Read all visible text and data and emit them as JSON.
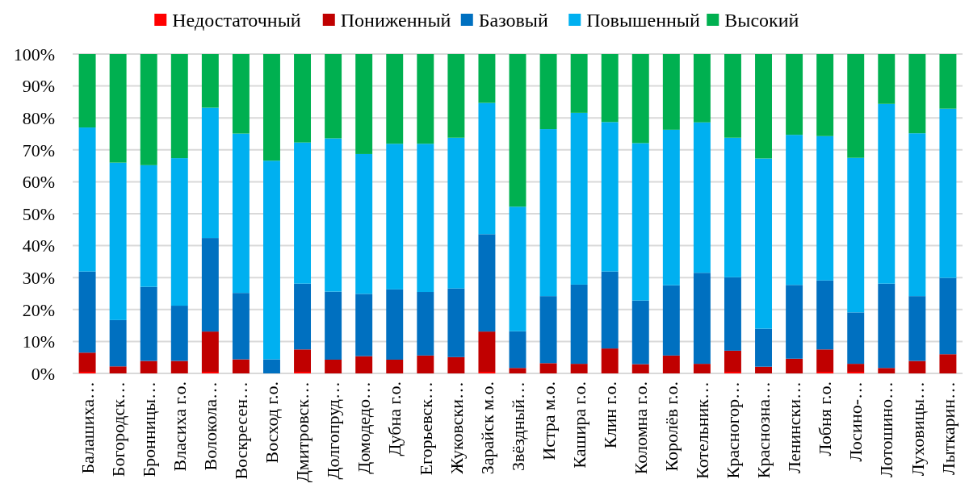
{
  "chart_data": {
    "type": "bar",
    "stacked": true,
    "legend": "top",
    "grid": "y",
    "categories": [
      "Балашиха…",
      "Богородск…",
      "Бронницы…",
      "Власиха г.о.",
      "Волокола…",
      "Воскресен…",
      "Восход г.о.",
      "Дмитровск…",
      "Долгопруд…",
      "Домодедо…",
      "Дубна г.о.",
      "Егорьевск…",
      "Жуковски…",
      "Зарайск м.о.",
      "Звёздный…",
      "Истра м.о.",
      "Кашира г.о.",
      "Клин г.о.",
      "Коломна г.о.",
      "Королёв г.о.",
      "Котельник…",
      "Красногор…",
      "Краснозна…",
      "Ленински…",
      "Лобня г.о.",
      "Лосино-…",
      "Лотошино…",
      "Луховицы…",
      "Лыткарин…"
    ],
    "series": [
      {
        "name": "Недостаточный",
        "color": "#ff0000",
        "values": [
          0.5,
          0,
          0,
          0,
          0.5,
          0,
          0,
          0.5,
          0,
          0,
          0,
          0,
          0,
          0.5,
          0,
          0,
          0,
          0,
          0,
          0,
          0,
          0.5,
          0,
          0,
          0.5,
          0.5,
          0,
          0,
          0
        ]
      },
      {
        "name": "Пониженный",
        "color": "#c00000",
        "values": [
          6.0,
          2.2,
          3.9,
          3.9,
          12.6,
          4.4,
          0,
          7.0,
          4.3,
          5.4,
          4.3,
          5.6,
          5.1,
          12.6,
          1.7,
          3.2,
          3.0,
          7.8,
          2.9,
          5.6,
          3.0,
          6.6,
          2.1,
          4.6,
          7.0,
          2.5,
          1.7,
          3.9,
          6.0
        ]
      },
      {
        "name": "Базовый",
        "color": "#0070c0",
        "values": [
          25.4,
          14.5,
          23.2,
          17.3,
          29.3,
          20.8,
          4.4,
          20.6,
          21.3,
          19.5,
          22.0,
          19.9,
          21.5,
          30.5,
          11.5,
          21.0,
          24.8,
          24.1,
          19.9,
          22.0,
          28.5,
          23.0,
          11.9,
          23.1,
          21.6,
          16.1,
          26.4,
          20.3,
          23.9
        ]
      },
      {
        "name": "Повышенный",
        "color": "#00b0f0",
        "values": [
          45.1,
          49.3,
          38.1,
          46.2,
          40.8,
          49.9,
          62.2,
          44.2,
          48.0,
          43.8,
          45.6,
          46.4,
          47.2,
          41.1,
          39.0,
          52.3,
          53.8,
          46.8,
          49.3,
          48.7,
          47.1,
          43.7,
          53.3,
          47.0,
          45.2,
          48.4,
          56.3,
          51.0,
          53.0
        ]
      },
      {
        "name": "Высокий",
        "color": "#00b050",
        "values": [
          23.0,
          34.0,
          34.8,
          32.6,
          16.8,
          24.9,
          33.4,
          27.7,
          26.4,
          31.3,
          28.1,
          28.1,
          26.2,
          15.3,
          47.8,
          23.5,
          18.4,
          21.3,
          27.9,
          23.7,
          21.4,
          26.2,
          32.7,
          25.3,
          25.7,
          32.5,
          15.6,
          24.8,
          17.1
        ]
      }
    ],
    "ylim": [
      0,
      100
    ],
    "yticks": [
      {
        "value": 0,
        "label": "0%"
      },
      {
        "value": 10,
        "label": "10%"
      },
      {
        "value": 20,
        "label": "20%"
      },
      {
        "value": 30,
        "label": "30%"
      },
      {
        "value": 40,
        "label": "40%"
      },
      {
        "value": 50,
        "label": "50%"
      },
      {
        "value": 60,
        "label": "60%"
      },
      {
        "value": 70,
        "label": "70%"
      },
      {
        "value": 80,
        "label": "80%"
      },
      {
        "value": 90,
        "label": "90%"
      },
      {
        "value": 100,
        "label": "100%"
      }
    ]
  }
}
